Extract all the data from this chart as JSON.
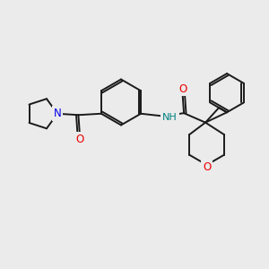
{
  "background_color": "#ebebeb",
  "bond_color": "#1a1a1a",
  "lw": 1.4,
  "double_sep": 0.08,
  "atom_N_color": "#0000ee",
  "atom_O_color": "#ee0000",
  "atom_NH_color": "#008080",
  "xlim": [
    0,
    10
  ],
  "ylim": [
    0,
    10
  ]
}
